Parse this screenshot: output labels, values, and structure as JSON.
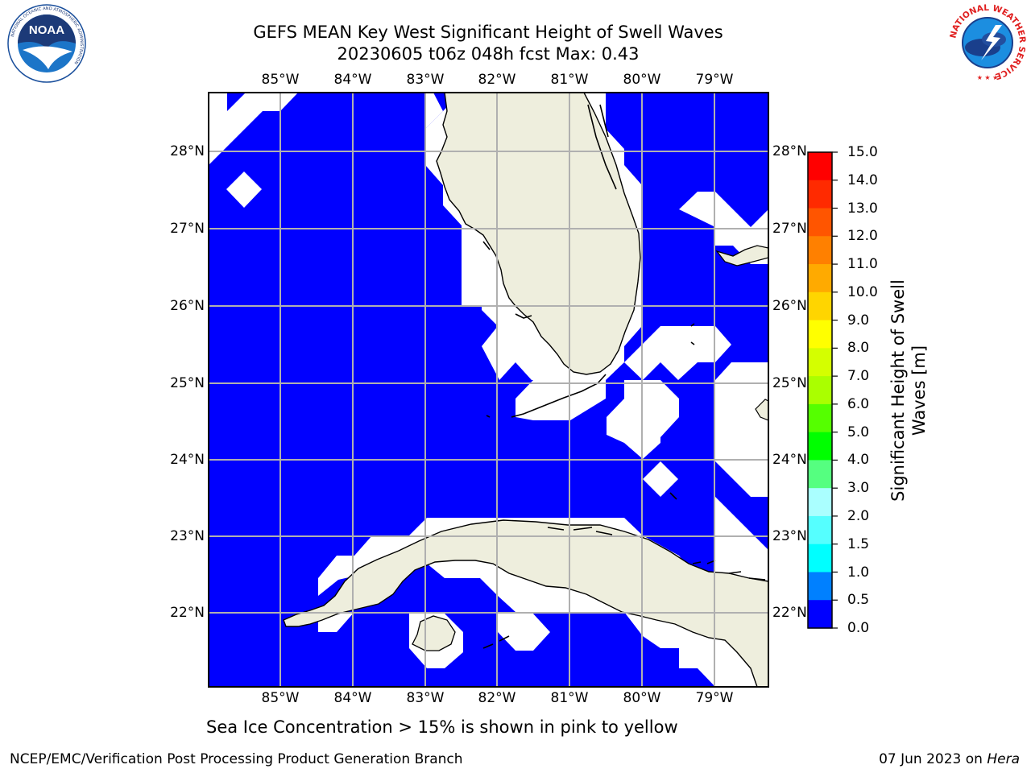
{
  "title": {
    "line1": "GEFS MEAN Key West Significant Height of Swell Waves",
    "line2": "20230605 t06z 048h fcst   Max: 0.43"
  },
  "map": {
    "lon_labels": [
      "85°W",
      "84°W",
      "83°W",
      "82°W",
      "81°W",
      "80°W",
      "79°W"
    ],
    "lat_labels": [
      "28°N",
      "27°N",
      "26°N",
      "25°N",
      "24°N",
      "23°N",
      "22°N"
    ],
    "ocean_color": "#0000ff",
    "land_color": "#eeeedd",
    "gridline_color": "#b0b0b0",
    "place_names": []
  },
  "colorbar": {
    "title": "Significant Height of Swell Waves [m]",
    "tick_labels": [
      "15.0",
      "14.0",
      "13.0",
      "12.0",
      "11.0",
      "10.0",
      "9.0",
      "8.0",
      "7.0",
      "6.0",
      "5.0",
      "4.0",
      "3.0",
      "2.0",
      "1.5",
      "1.0",
      "0.5",
      "0.0"
    ],
    "colors": [
      "#ff0000",
      "#ff2a00",
      "#ff5500",
      "#ff8000",
      "#ffaa00",
      "#ffd500",
      "#ffff00",
      "#d4ff00",
      "#aaff00",
      "#55ff00",
      "#00ff00",
      "#55ff80",
      "#aaffff",
      "#55ffff",
      "#00ffff",
      "#0080ff",
      "#0000ff"
    ]
  },
  "footnote": "Sea Ice Concentration > 15% is shown in pink to yellow",
  "credits": {
    "left": "NCEP/EMC/Verification Post Processing Product Generation Branch",
    "right_date": "07 Jun 2023 on ",
    "right_system": "Hera"
  },
  "logos": {
    "noaa_text": "NOAA",
    "noaa_ring": "NATIONAL OCEANIC AND ATMOSPHERIC ADMINISTRATION",
    "noaa_bottom": "U.S. DEPARTMENT OF COMMERCE",
    "nws_ring": "NATIONAL WEATHER SERVICE"
  }
}
